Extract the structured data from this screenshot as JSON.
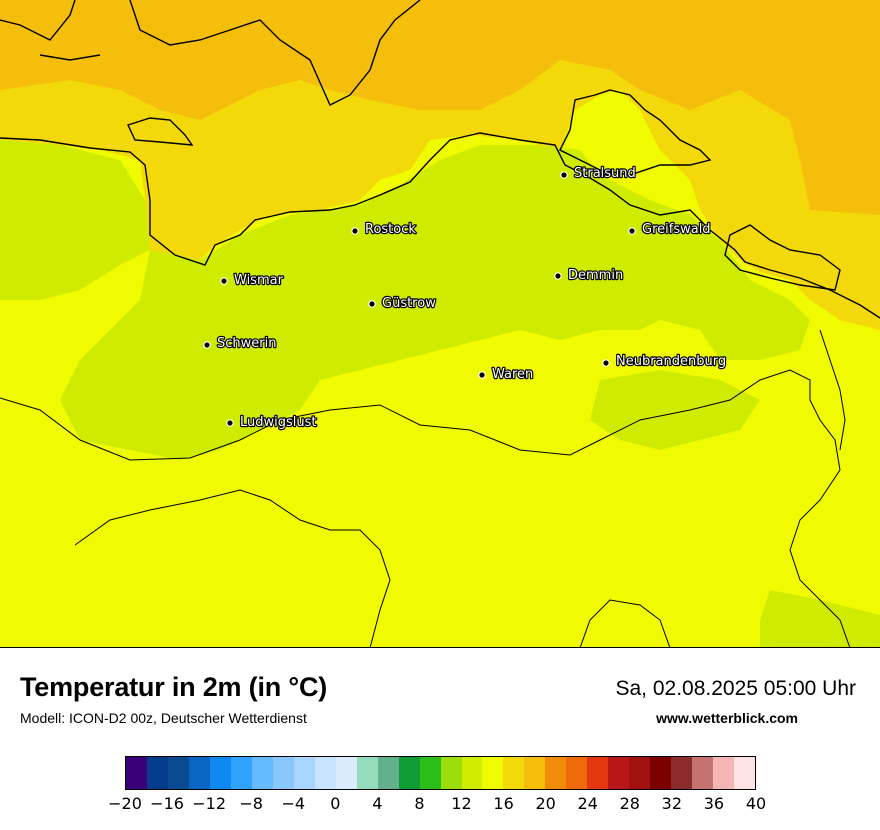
{
  "map": {
    "cities": [
      {
        "name": "Stralsund"
      },
      {
        "name": "Rostock"
      },
      {
        "name": "Greifswald"
      },
      {
        "name": "Wismar"
      },
      {
        "name": "Demmin"
      },
      {
        "name": "Güstrow"
      },
      {
        "name": "Schwerin"
      },
      {
        "name": "Neubrandenburg"
      },
      {
        "name": "Waren"
      },
      {
        "name": "Ludwigslust"
      }
    ]
  },
  "footer": {
    "title": "Temperatur in 2m (in °C)",
    "subtitle": "Modell: ICON-D2 00z, Deutscher Wetterdienst",
    "datetime": "Sa, 02.08.2025 05:00 Uhr",
    "website": "www.wetterblick.com"
  },
  "colorbar": {
    "ticks": [
      "−20",
      "−16",
      "−12",
      "−8",
      "−4",
      "0",
      "4",
      "8",
      "12",
      "16",
      "20",
      "24",
      "28",
      "32",
      "36",
      "40"
    ],
    "colors": [
      "#3a007a",
      "#053d8c",
      "#0a4a90",
      "#0b66c3",
      "#0f89f0",
      "#31a3ff",
      "#66bbff",
      "#89c6fb",
      "#a8d4fd",
      "#c8e3fd",
      "#d9ebfd",
      "#95dcbc",
      "#62b08c",
      "#0f9c35",
      "#2cbe1a",
      "#9cde0a",
      "#cfec00",
      "#f0fb00",
      "#f3d90a",
      "#f5be0a",
      "#f18b0c",
      "#f06a0c",
      "#e4370f",
      "#b91717",
      "#a2110f",
      "#7c0000",
      "#8b2b2b",
      "#c47371",
      "#f4b6b4",
      "#fde3e3"
    ]
  }
}
